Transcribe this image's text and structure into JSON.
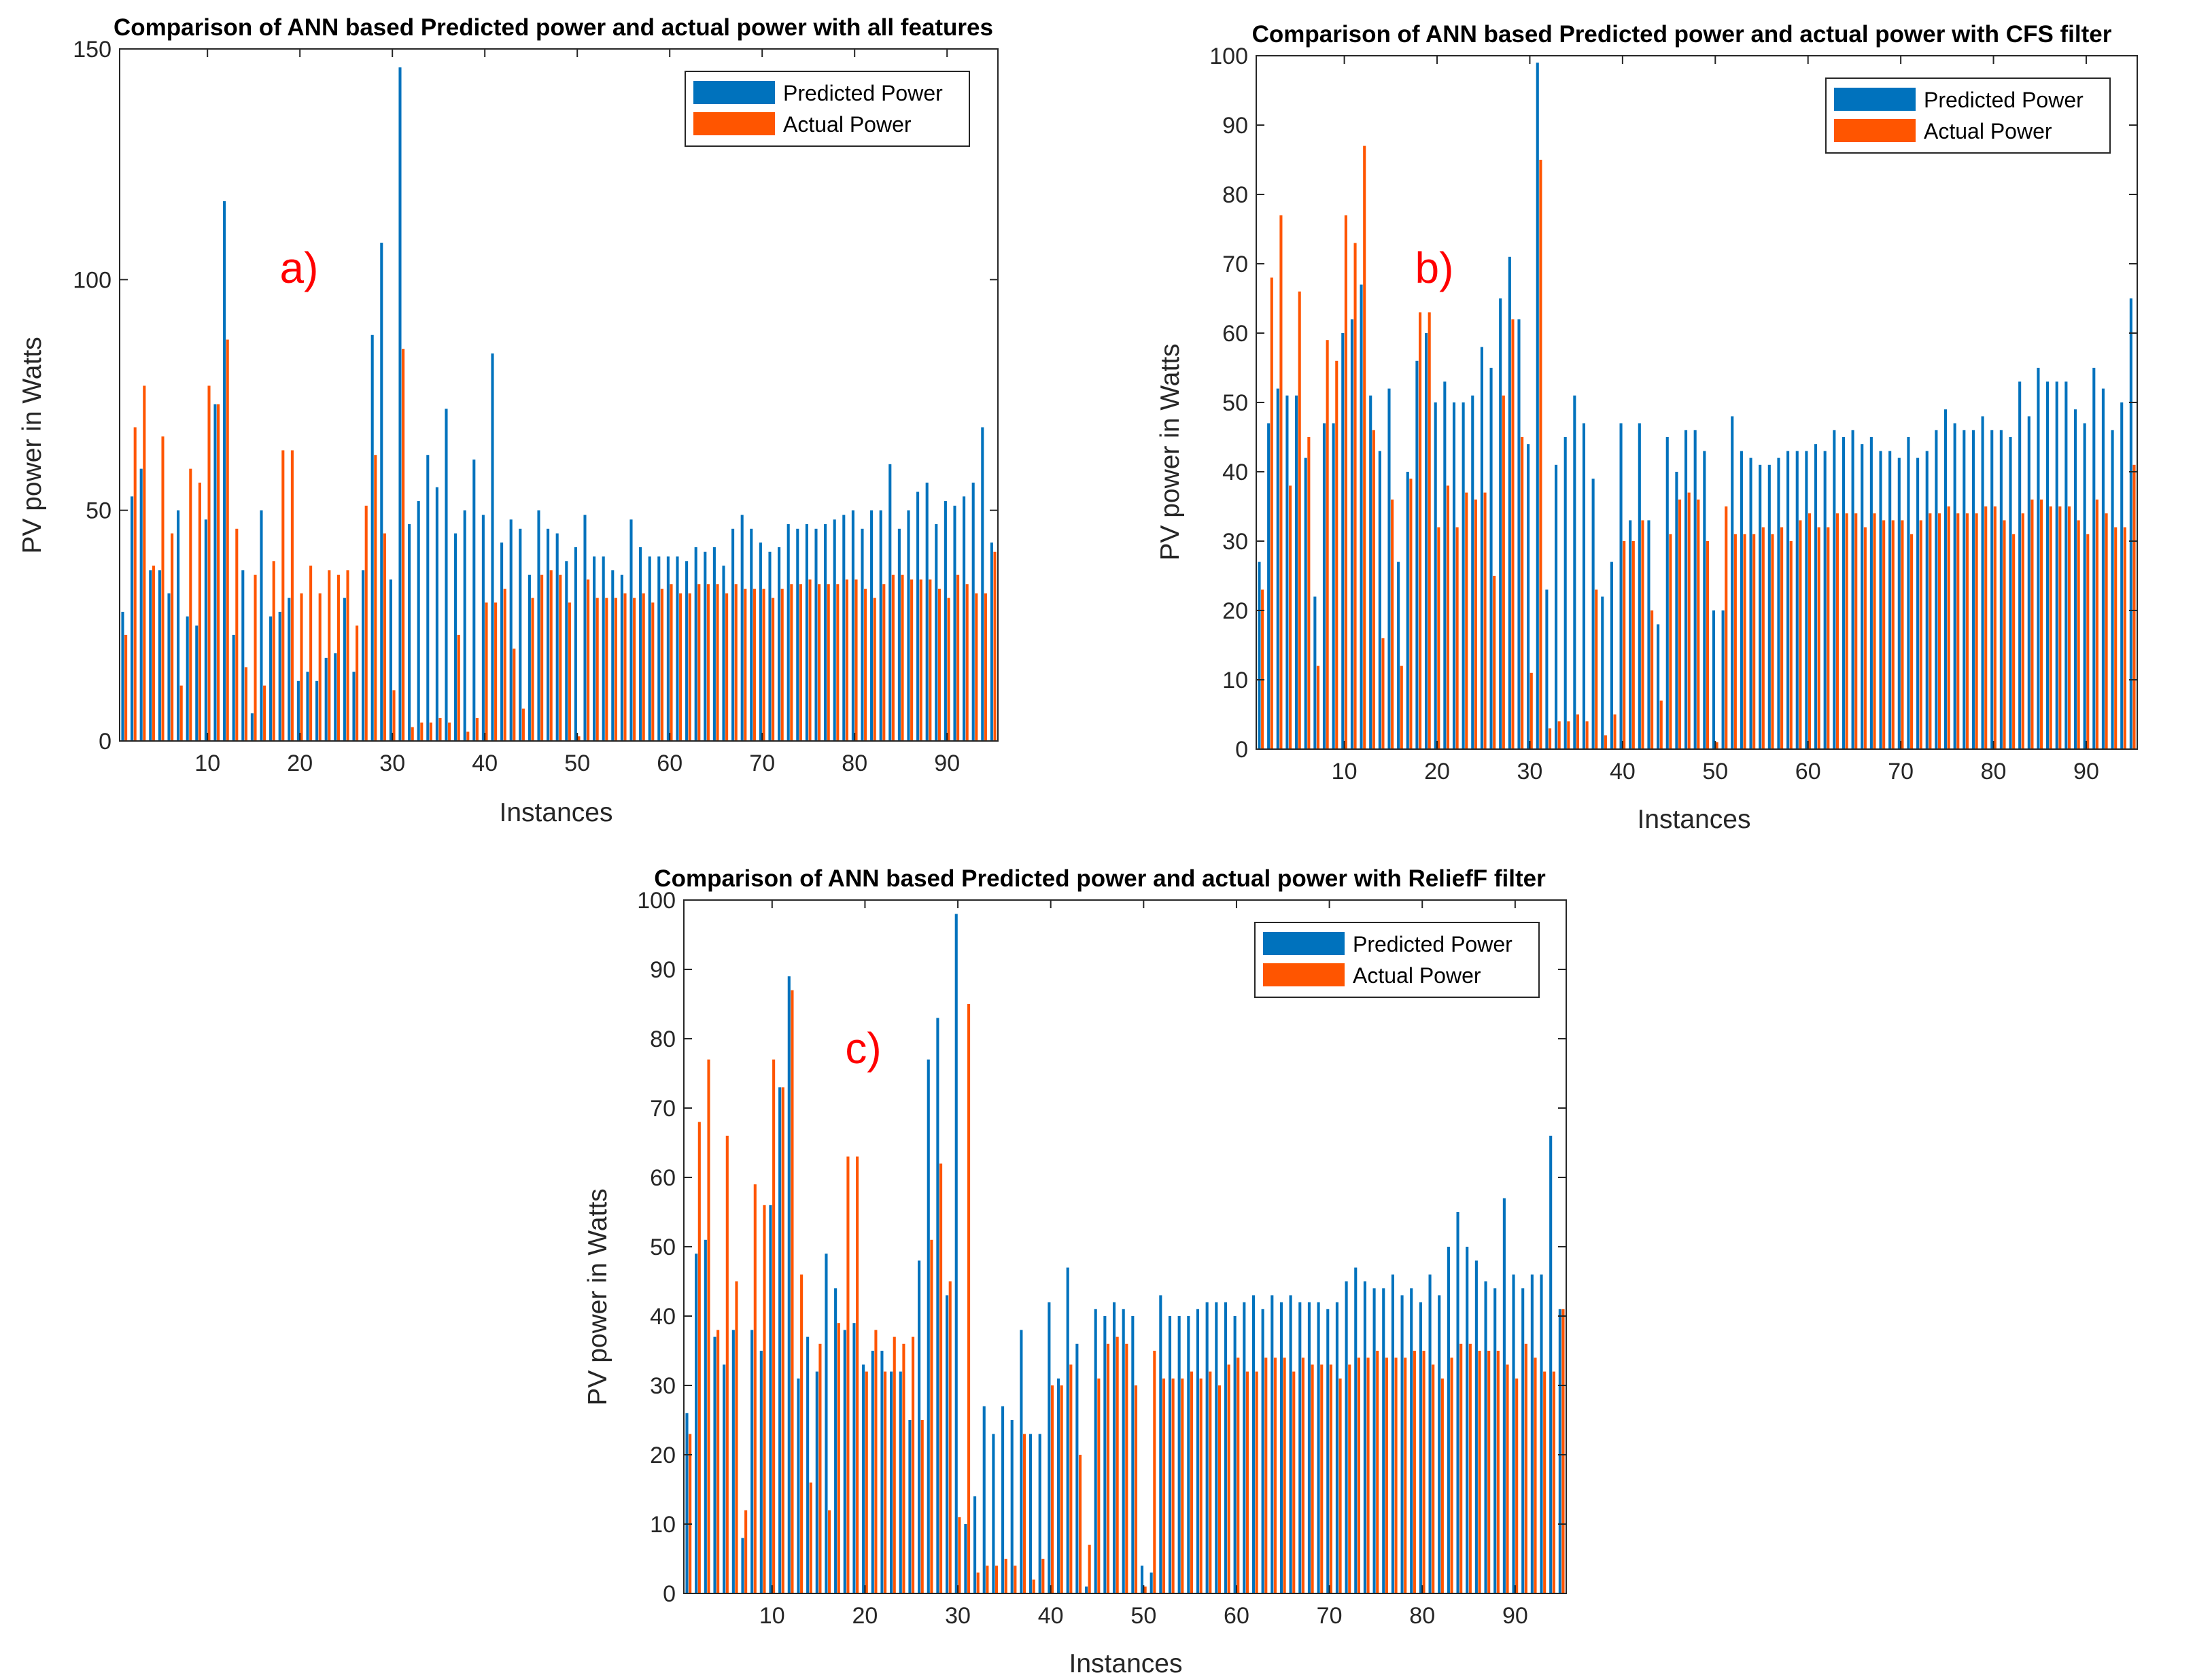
{
  "colors": {
    "predicted": "#0072BD",
    "actual": "#FF5500",
    "axis": "#262626"
  },
  "chart_data": [
    {
      "id": "a",
      "type": "bar",
      "title": "Comparison of ANN based Predicted power and actual power with all features",
      "panel_label": "a)",
      "xlabel": "Instances",
      "ylabel": "PV power in Watts",
      "ylim": [
        0,
        150
      ],
      "yticks": [
        0,
        50,
        100,
        150
      ],
      "xticks": [
        10,
        20,
        30,
        40,
        50,
        60,
        70,
        80,
        90
      ],
      "legend": [
        "Predicted Power",
        "Actual Power"
      ],
      "legend_position": "top-right",
      "series": [
        {
          "name": "Predicted Power",
          "values": [
            28,
            53,
            59,
            37,
            37,
            32,
            50,
            27,
            25,
            48,
            73,
            117,
            23,
            37,
            6,
            50,
            27,
            28,
            31,
            13,
            15,
            13,
            18,
            19,
            31,
            15,
            37,
            88,
            108,
            35,
            146,
            47,
            52,
            62,
            55,
            72,
            45,
            50,
            61,
            49,
            84,
            43,
            48,
            46,
            36,
            50,
            46,
            45,
            39,
            42,
            49,
            40,
            40,
            37,
            36,
            48,
            42,
            40,
            40,
            40,
            40,
            39,
            42,
            41,
            42,
            38,
            46,
            49,
            46,
            43,
            41,
            42,
            47,
            46,
            47,
            46,
            47,
            48,
            49,
            50,
            46,
            50,
            50,
            60,
            46,
            50,
            54,
            56,
            47,
            52,
            51,
            53,
            56,
            68,
            43
          ]
        },
        {
          "name": "Actual Power",
          "values": [
            23,
            68,
            77,
            38,
            66,
            45,
            12,
            59,
            56,
            77,
            73,
            87,
            46,
            16,
            36,
            12,
            39,
            63,
            63,
            32,
            38,
            32,
            37,
            36,
            37,
            25,
            51,
            62,
            45,
            11,
            85,
            3,
            4,
            4,
            5,
            4,
            23,
            2,
            5,
            30,
            30,
            33,
            20,
            7,
            31,
            36,
            37,
            36,
            30,
            1,
            35,
            31,
            31,
            31,
            32,
            31,
            32,
            30,
            33,
            34,
            32,
            32,
            34,
            34,
            34,
            32,
            34,
            33,
            33,
            33,
            31,
            33,
            34,
            34,
            35,
            34,
            34,
            34,
            35,
            35,
            33,
            31,
            34,
            36,
            36,
            35,
            35,
            35,
            33,
            31,
            36,
            34,
            32,
            32,
            41
          ]
        }
      ]
    },
    {
      "id": "b",
      "type": "bar",
      "title": "Comparison of ANN based Predicted power and actual power with CFS filter",
      "panel_label": "b)",
      "xlabel": "Instances",
      "ylabel": "PV power in Watts",
      "ylim": [
        0,
        100
      ],
      "yticks": [
        0,
        10,
        20,
        30,
        40,
        50,
        60,
        70,
        80,
        90,
        100
      ],
      "xticks": [
        10,
        20,
        30,
        40,
        50,
        60,
        70,
        80,
        90
      ],
      "legend": [
        "Predicted Power",
        "Actual Power"
      ],
      "legend_position": "top-right",
      "series": [
        {
          "name": "Predicted Power",
          "values": [
            27,
            47,
            52,
            51,
            51,
            42,
            22,
            47,
            47,
            60,
            62,
            67,
            51,
            43,
            52,
            27,
            40,
            56,
            60,
            50,
            53,
            50,
            50,
            51,
            58,
            55,
            65,
            71,
            62,
            44,
            99,
            23,
            41,
            45,
            51,
            47,
            39,
            22,
            27,
            47,
            33,
            47,
            33,
            18,
            45,
            40,
            46,
            46,
            43,
            20,
            20,
            48,
            43,
            42,
            41,
            41,
            42,
            43,
            43,
            43,
            44,
            43,
            46,
            45,
            46,
            44,
            45,
            43,
            43,
            42,
            45,
            42,
            43,
            46,
            49,
            47,
            46,
            46,
            48,
            46,
            46,
            45,
            53,
            48,
            55,
            53,
            53,
            53,
            49,
            47,
            55,
            52,
            46,
            50,
            65
          ]
        },
        {
          "name": "Actual Power",
          "values": [
            23,
            68,
            77,
            38,
            66,
            45,
            12,
            59,
            56,
            77,
            73,
            87,
            46,
            16,
            36,
            12,
            39,
            63,
            63,
            32,
            38,
            32,
            37,
            36,
            37,
            25,
            51,
            62,
            45,
            11,
            85,
            3,
            4,
            4,
            5,
            4,
            23,
            2,
            5,
            30,
            30,
            33,
            20,
            7,
            31,
            36,
            37,
            36,
            30,
            1,
            35,
            31,
            31,
            31,
            32,
            31,
            32,
            30,
            33,
            34,
            32,
            32,
            34,
            34,
            34,
            32,
            34,
            33,
            33,
            33,
            31,
            33,
            34,
            34,
            35,
            34,
            34,
            34,
            35,
            35,
            33,
            31,
            34,
            36,
            36,
            35,
            35,
            35,
            33,
            31,
            36,
            34,
            32,
            32,
            41
          ]
        }
      ]
    },
    {
      "id": "c",
      "type": "bar",
      "title": "Comparison of ANN based Predicted power and actual power with ReliefF filter",
      "panel_label": "c)",
      "xlabel": "Instances",
      "ylabel": "PV power in Watts",
      "ylim": [
        0,
        100
      ],
      "yticks": [
        0,
        10,
        20,
        30,
        40,
        50,
        60,
        70,
        80,
        90,
        100
      ],
      "xticks": [
        10,
        20,
        30,
        40,
        50,
        60,
        70,
        80,
        90
      ],
      "legend": [
        "Predicted Power",
        "Actual Power"
      ],
      "legend_position": "top-right",
      "series": [
        {
          "name": "Predicted Power",
          "values": [
            26,
            49,
            51,
            37,
            33,
            38,
            8,
            38,
            35,
            56,
            73,
            89,
            31,
            37,
            32,
            49,
            44,
            38,
            39,
            33,
            35,
            35,
            32,
            32,
            25,
            48,
            77,
            83,
            43,
            98,
            10,
            14,
            27,
            23,
            27,
            25,
            38,
            23,
            23,
            42,
            31,
            47,
            36,
            1,
            41,
            40,
            42,
            41,
            40,
            4,
            3,
            43,
            40,
            40,
            40,
            41,
            42,
            42,
            42,
            40,
            42,
            43,
            41,
            43,
            42,
            43,
            42,
            42,
            42,
            41,
            42,
            45,
            47,
            45,
            44,
            44,
            46,
            43,
            44,
            42,
            46,
            43,
            50,
            55,
            50,
            48,
            45,
            44,
            57,
            46,
            44,
            46,
            46,
            66,
            41
          ]
        },
        {
          "name": "Actual Power",
          "values": [
            23,
            68,
            77,
            38,
            66,
            45,
            12,
            59,
            56,
            77,
            73,
            87,
            46,
            16,
            36,
            12,
            39,
            63,
            63,
            32,
            38,
            32,
            37,
            36,
            37,
            25,
            51,
            62,
            45,
            11,
            85,
            3,
            4,
            4,
            5,
            4,
            23,
            2,
            5,
            30,
            30,
            33,
            20,
            7,
            31,
            36,
            37,
            36,
            30,
            1,
            35,
            31,
            31,
            31,
            32,
            31,
            32,
            30,
            33,
            34,
            32,
            32,
            34,
            34,
            34,
            32,
            34,
            33,
            33,
            33,
            31,
            33,
            34,
            34,
            35,
            34,
            34,
            34,
            35,
            35,
            33,
            31,
            34,
            36,
            36,
            35,
            35,
            35,
            33,
            31,
            36,
            34,
            32,
            32,
            41
          ]
        }
      ]
    }
  ]
}
